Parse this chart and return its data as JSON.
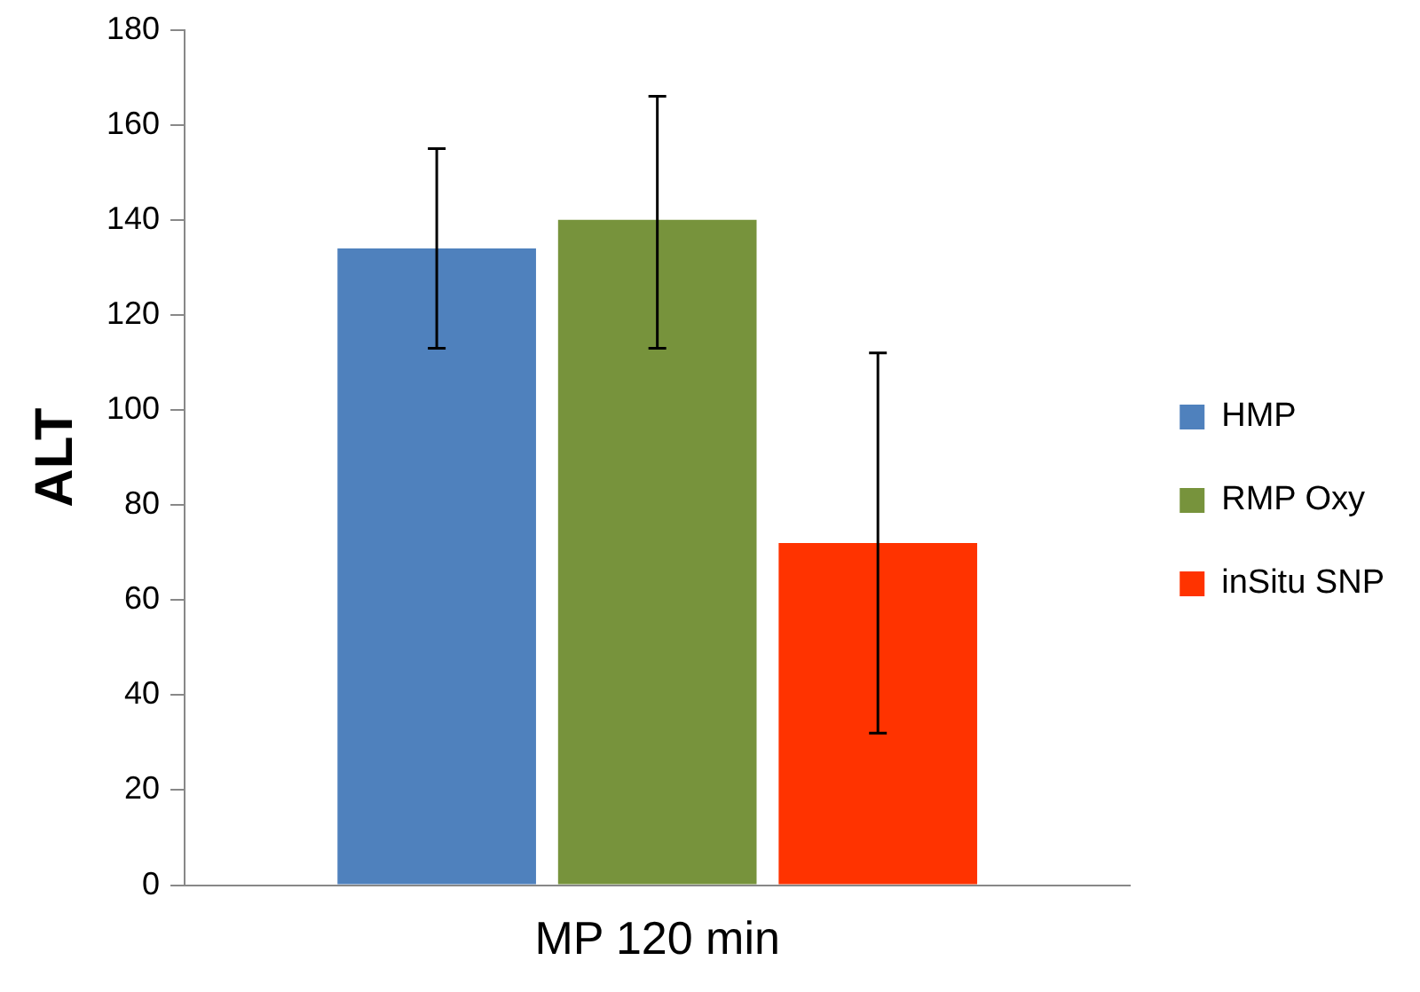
{
  "chart_data": {
    "type": "bar",
    "ylabel": "ALT",
    "categories": [
      "MP 120 min"
    ],
    "series": [
      {
        "name": "HMP",
        "color": "#4f81bd",
        "values": [
          134
        ],
        "errors": [
          21
        ]
      },
      {
        "name": "RMP Oxy",
        "color": "#77933c",
        "values": [
          140
        ],
        "errors": [
          [
            113,
            166
          ]
        ]
      },
      {
        "name": "inSitu SNP",
        "color": "#ff3300",
        "values": [
          72
        ],
        "errors": [
          40
        ]
      }
    ],
    "ylim": [
      0,
      180
    ],
    "yticks": [
      0,
      20,
      40,
      60,
      80,
      100,
      120,
      140,
      160,
      180
    ],
    "grid": false,
    "legend": "right"
  }
}
